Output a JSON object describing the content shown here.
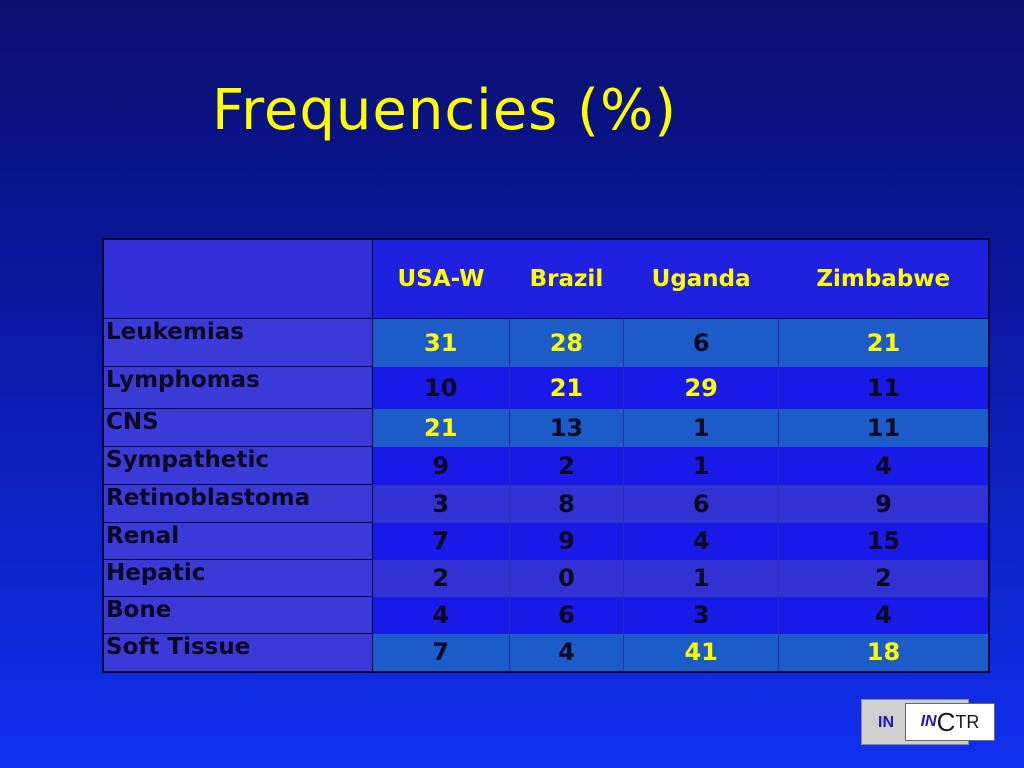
{
  "title": "Frequencies (%)",
  "table": {
    "columns": [
      "USA-W",
      "Brazil",
      "Uganda",
      "Zimbabwe"
    ],
    "rows": [
      {
        "label": "Leukemias",
        "values": [
          "31",
          "28",
          "6",
          "21"
        ],
        "highlight": [
          true,
          true,
          false,
          true
        ],
        "style": "teal"
      },
      {
        "label": "Lymphomas",
        "values": [
          "10",
          "21",
          "29",
          "11"
        ],
        "highlight": [
          false,
          true,
          true,
          false
        ],
        "style": "blue"
      },
      {
        "label": "CNS",
        "values": [
          "21",
          "13",
          "1",
          "11"
        ],
        "highlight": [
          true,
          false,
          false,
          false
        ],
        "style": "teal"
      },
      {
        "label": "Sympathetic",
        "values": [
          "9",
          "2",
          "1",
          "4"
        ],
        "highlight": [
          false,
          false,
          false,
          false
        ],
        "style": "blue"
      },
      {
        "label": "Retinoblastoma",
        "values": [
          "3",
          "8",
          "6",
          "9"
        ],
        "highlight": [
          false,
          false,
          false,
          false
        ],
        "style": "purple"
      },
      {
        "label": "Renal",
        "values": [
          "7",
          "9",
          "4",
          "15"
        ],
        "highlight": [
          false,
          false,
          false,
          false
        ],
        "style": "blue"
      },
      {
        "label": "Hepatic",
        "values": [
          "2",
          "0",
          "1",
          "2"
        ],
        "highlight": [
          false,
          false,
          false,
          false
        ],
        "style": "purple"
      },
      {
        "label": "Bone",
        "values": [
          "4",
          "6",
          "3",
          "4"
        ],
        "highlight": [
          false,
          false,
          false,
          false
        ],
        "style": "blue"
      },
      {
        "label": "Soft Tissue",
        "values": [
          "7",
          "4",
          "41",
          "18"
        ],
        "highlight": [
          false,
          false,
          true,
          true
        ],
        "style": "teal"
      }
    ]
  },
  "logo": {
    "back_text": "IN",
    "front_prefix": "IN",
    "front_letter": "C",
    "front_suffix": "TR"
  },
  "colors": {
    "title": "#ffff00",
    "highlight_value": "#ffff00",
    "normal_value": "#0a0a20"
  }
}
